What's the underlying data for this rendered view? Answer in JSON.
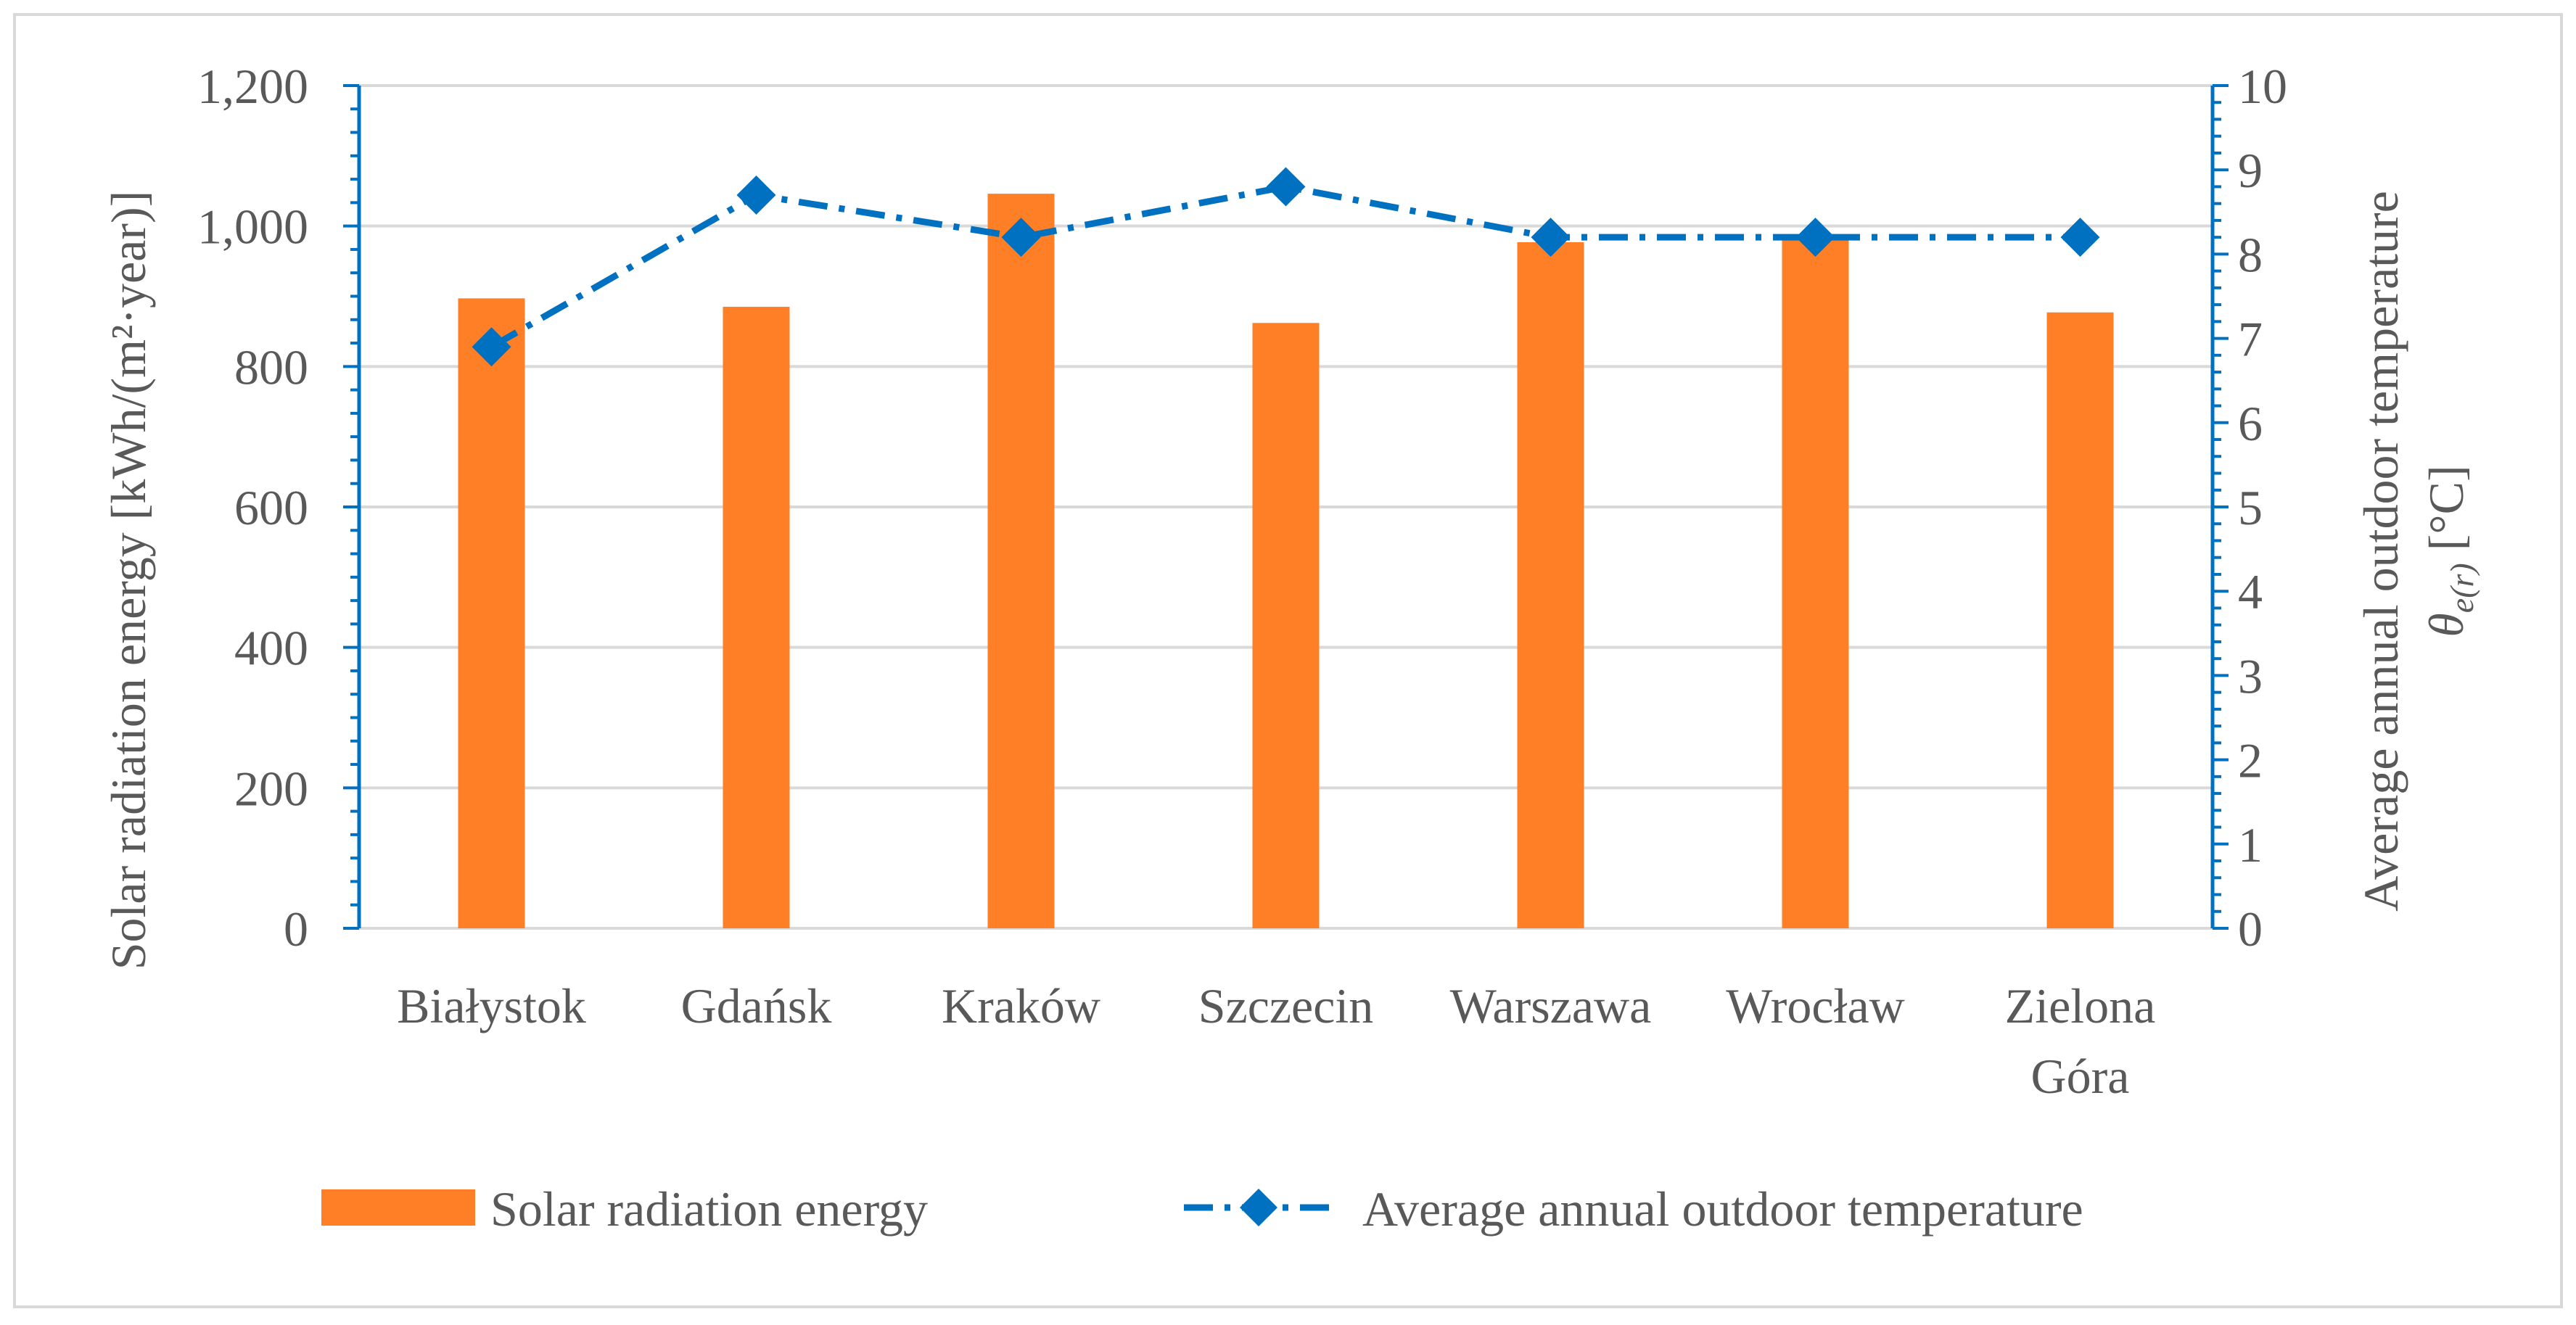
{
  "chart_data": {
    "type": "bar+line",
    "title": "",
    "categories": [
      "Białystok",
      "Gdańsk",
      "Kraków",
      "Szczecin",
      "Warszawa",
      "Wrocław",
      "Zielona Góra"
    ],
    "category_lines": [
      [
        "Białystok"
      ],
      [
        "Gdańsk"
      ],
      [
        "Kraków"
      ],
      [
        "Szczecin"
      ],
      [
        "Warszawa"
      ],
      [
        "Wrocław"
      ],
      [
        "Zielona",
        "Góra"
      ]
    ],
    "series": [
      {
        "name": "Solar radiation energy",
        "type": "bar",
        "axis": "left",
        "color": "#FF7F27",
        "values": [
          897,
          885,
          1046,
          862,
          977,
          986,
          877
        ]
      },
      {
        "name": "Average annual outdoor temperature",
        "type": "line",
        "axis": "right",
        "color": "#0070C0",
        "marker": "diamond",
        "line_style": "dash-dot",
        "values": [
          6.9,
          8.7,
          8.2,
          8.8,
          8.2,
          8.2,
          8.2
        ]
      }
    ],
    "y_left": {
      "label": "Solar radiation energy  [kWh/(m²·year)]",
      "min": 0,
      "max": 1200,
      "major_step": 200,
      "tick_labels": [
        "0",
        "200",
        "400",
        "600",
        "800",
        "1,000",
        "1,200"
      ]
    },
    "y_right": {
      "label_line1": "Average annual outdoor temperature",
      "label_line2_symbol": "θ",
      "label_line2_subscript": "e(r)",
      "label_line2_unit": " [°C]",
      "min": 0,
      "max": 10,
      "major_step": 1,
      "minor_per_major": 5,
      "tick_labels": [
        "0",
        "1",
        "2",
        "3",
        "4",
        "5",
        "6",
        "7",
        "8",
        "9",
        "10"
      ]
    },
    "grid": true,
    "legend_position": "bottom",
    "colors": {
      "bar": "#FF7F27",
      "line": "#0070C0",
      "grid": "#D9D9D9",
      "text": "#595959",
      "border": "#D9D9D9"
    }
  }
}
